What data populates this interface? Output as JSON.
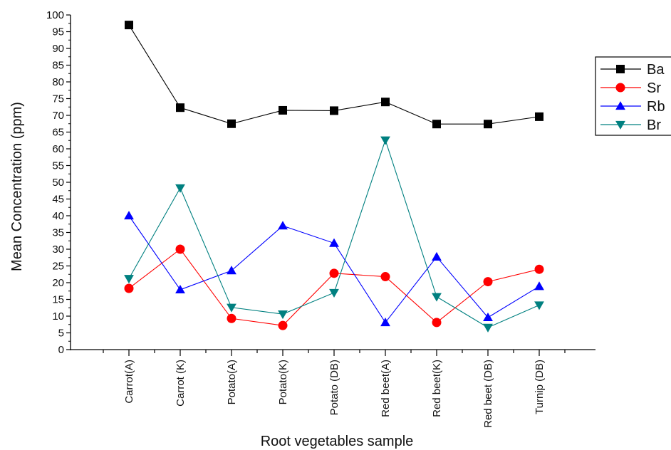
{
  "chart_data": {
    "type": "line",
    "title": "",
    "xlabel": "Root vegetables sample",
    "ylabel": "Mean Concentration (ppm)",
    "ylim": [
      0,
      100
    ],
    "yticks": [
      "0",
      "5",
      "10",
      "15",
      "20",
      "25",
      "30",
      "35",
      "40",
      "45",
      "50",
      "55",
      "60",
      "65",
      "70",
      "75",
      "80",
      "85",
      "90",
      "95",
      "100"
    ],
    "categories": [
      "Carrot(A)",
      "Carrot (K)",
      "Potato(A)",
      "Potato(K)",
      "Potato (DB)",
      "Red beet(A)",
      "Red beet(K)",
      "Red beet (DB)",
      "Turnip (DB)"
    ],
    "legend_position": "right",
    "grid": false,
    "series": [
      {
        "name": "Ba",
        "color": "#000000",
        "marker": "square",
        "values": [
          97,
          72.3,
          67.5,
          71.5,
          71.4,
          74,
          67.4,
          67.4,
          69.6
        ]
      },
      {
        "name": "Sr",
        "color": "#ff0000",
        "marker": "circle",
        "values": [
          18.3,
          30,
          9.3,
          7.2,
          22.8,
          21.8,
          8.1,
          20.3,
          24
        ]
      },
      {
        "name": "Rb",
        "color": "#0000ff",
        "marker": "triangle-up",
        "values": [
          40,
          17.9,
          23.6,
          37,
          31.8,
          8.1,
          27.7,
          9.6,
          18.9
        ]
      },
      {
        "name": "Br",
        "color": "#008080",
        "marker": "triangle-down",
        "values": [
          21.2,
          48.3,
          12.6,
          10.6,
          17,
          62.6,
          15.8,
          6.6,
          13.3
        ]
      }
    ]
  }
}
